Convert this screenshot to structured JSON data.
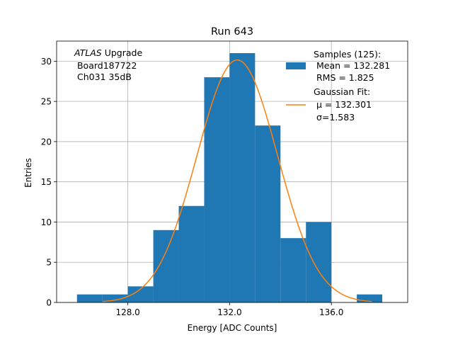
{
  "chart_data": {
    "type": "bar",
    "title": "Run 643",
    "xlabel": "Energy [ADC Counts]",
    "ylabel": "Entries",
    "xlim": [
      125.2,
      139.0
    ],
    "ylim": [
      0,
      32.5
    ],
    "x_ticks": [
      128.0,
      132.0,
      136.0
    ],
    "x_tick_labels": [
      "128.0",
      "132.0",
      "136.0"
    ],
    "y_ticks": [
      0,
      5,
      10,
      15,
      20,
      25,
      30
    ],
    "y_tick_labels": [
      "0",
      "5",
      "10",
      "15",
      "20",
      "25",
      "30"
    ],
    "grid": true,
    "bin_edges": [
      126,
      127,
      128,
      129,
      130,
      131,
      132,
      133,
      134,
      135,
      136,
      137,
      138
    ],
    "counts": [
      1,
      1,
      2,
      9,
      12,
      28,
      31,
      22,
      8,
      10,
      0,
      1
    ],
    "bar_color": "#1f77b4",
    "fit": {
      "mean": 132.301,
      "sigma": 1.583,
      "amplitude": 30.15,
      "x_range": [
        127.0,
        137.6
      ],
      "color": "#ff7f0e"
    },
    "annotation": {
      "italic": "ATLAS",
      "rest": " Upgrade",
      "line2": " Board187722",
      "line3": " Ch031 35dB"
    },
    "legend": {
      "position": "top-right",
      "entries": [
        {
          "lines": [
            "Samples (125):",
            " Mean = 132.281",
            " RMS = 1.825"
          ]
        },
        {
          "lines": [
            "Gaussian Fit:",
            " μ = 132.301",
            " σ=1.583"
          ]
        }
      ]
    }
  }
}
